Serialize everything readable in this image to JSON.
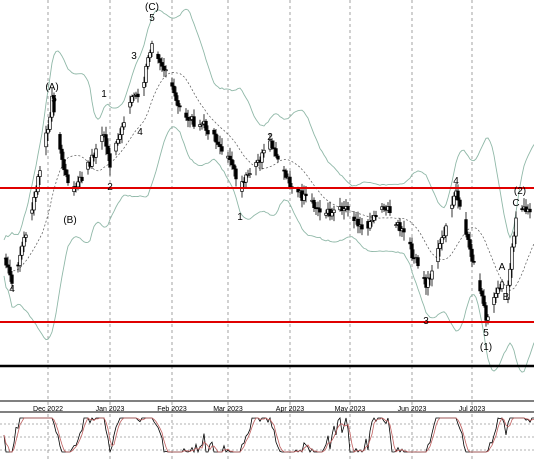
{
  "chart_data": {
    "type": "candlestick",
    "x_axis": {
      "tick_labels": [
        "Dec 2022",
        "Jan 2023",
        "Feb 2023",
        "Mar 2023",
        "Apr 2023",
        "May 2023",
        "Jun 2023",
        "Jul 2023"
      ]
    },
    "horizontal_lines": [
      {
        "name": "upper-red",
        "color": "#e00000"
      },
      {
        "name": "lower-red",
        "color": "#e00000"
      },
      {
        "name": "base-black",
        "color": "#000000"
      }
    ],
    "wave_labels": [
      {
        "text": "4",
        "day": 4
      },
      {
        "text": "(A)",
        "day": 24
      },
      {
        "text": "5",
        "day": 25
      },
      {
        "text": "(B)",
        "day": 33
      },
      {
        "text": "1",
        "day": 50
      },
      {
        "text": "2",
        "day": 53
      },
      {
        "text": "3",
        "day": 65
      },
      {
        "text": "4",
        "day": 68
      },
      {
        "text": "(C)",
        "day": 74
      },
      {
        "text": "5",
        "day": 74
      },
      {
        "text": "1",
        "day": 118
      },
      {
        "text": "2",
        "day": 133
      },
      {
        "text": "3",
        "day": 211
      },
      {
        "text": "4",
        "day": 226
      },
      {
        "text": "5",
        "day": 241
      },
      {
        "text": "(1)",
        "day": 241
      },
      {
        "text": "A",
        "day": 249
      },
      {
        "text": "B",
        "day": 251
      },
      {
        "text": "C",
        "day": 256
      },
      {
        "text": "(2)",
        "day": 258
      }
    ],
    "colors": {
      "candle": "#000000",
      "bollinger": "#90b8a8",
      "moving_average": "#555555",
      "stoch_k": "#000000",
      "stoch_d": "#c06060",
      "grid": "#666666"
    }
  }
}
